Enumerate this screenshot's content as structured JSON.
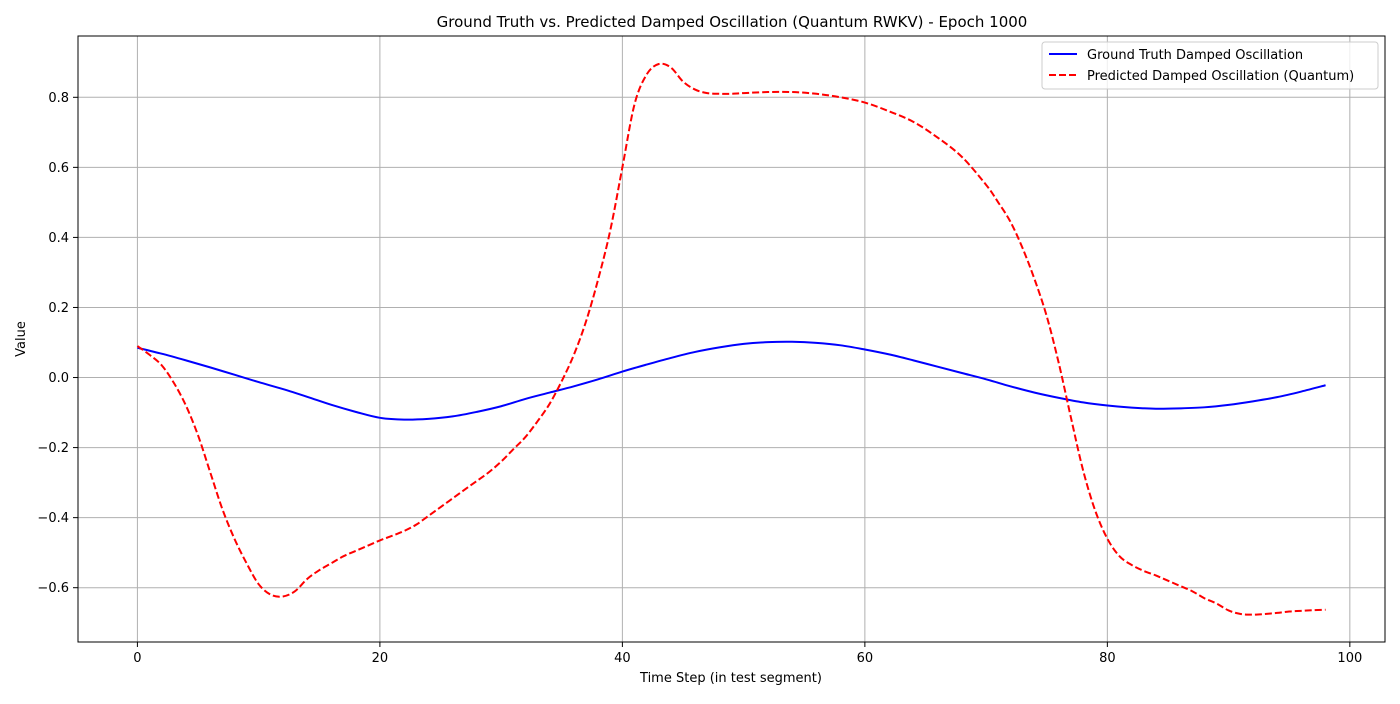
{
  "chart_data": {
    "type": "line",
    "title": "Ground Truth vs. Predicted Damped Oscillation (Quantum RWKV) - Epoch 1000",
    "xlabel": "Time Step (in test segment)",
    "ylabel": "Value",
    "xlim": [
      -4.9,
      102.9
    ],
    "ylim": [
      -0.755,
      0.975
    ],
    "x_ticks": [
      0,
      20,
      40,
      60,
      80,
      100
    ],
    "x_tick_labels": [
      "0",
      "20",
      "40",
      "60",
      "80",
      "100"
    ],
    "y_ticks": [
      -0.6,
      -0.4,
      -0.2,
      0.0,
      0.2,
      0.4,
      0.6,
      0.8
    ],
    "y_tick_labels": [
      "−0.6",
      "−0.4",
      "−0.2",
      "0.0",
      "0.2",
      "0.4",
      "0.6",
      "0.8"
    ],
    "grid": true,
    "legend_position": "top-right",
    "series": [
      {
        "name": "Ground Truth Damped Oscillation",
        "color": "#0000ff",
        "style": "solid",
        "x": [
          0,
          2,
          4,
          6,
          8,
          10,
          12,
          14,
          16,
          18,
          20,
          22,
          24,
          26,
          28,
          30,
          32,
          34,
          36,
          38,
          40,
          42,
          44,
          46,
          48,
          50,
          52,
          54,
          56,
          58,
          60,
          62,
          64,
          66,
          68,
          70,
          72,
          74,
          76,
          78,
          80,
          82,
          84,
          86,
          88,
          90,
          92,
          94,
          96,
          98
        ],
        "y": [
          0.085,
          0.068,
          0.049,
          0.029,
          0.008,
          -0.013,
          -0.033,
          -0.055,
          -0.078,
          -0.098,
          -0.115,
          -0.12,
          -0.118,
          -0.111,
          -0.098,
          -0.082,
          -0.061,
          -0.043,
          -0.025,
          -0.005,
          0.017,
          0.037,
          0.056,
          0.073,
          0.086,
          0.096,
          0.101,
          0.102,
          0.099,
          0.092,
          0.08,
          0.066,
          0.049,
          0.031,
          0.013,
          -0.005,
          -0.025,
          -0.043,
          -0.058,
          -0.071,
          -0.08,
          -0.086,
          -0.089,
          -0.088,
          -0.085,
          -0.078,
          -0.068,
          -0.056,
          -0.04,
          -0.022
        ]
      },
      {
        "name": "Predicted Damped Oscillation (Quantum)",
        "color": "#ff0000",
        "style": "dashed",
        "x": [
          0,
          1,
          2,
          3,
          4,
          5,
          6,
          7,
          8,
          9,
          10,
          11,
          12,
          13,
          14,
          15,
          16,
          17,
          18,
          19,
          20,
          21,
          22,
          23,
          24,
          25,
          26,
          27,
          28,
          29,
          30,
          31,
          32,
          33,
          34,
          35,
          36,
          37,
          38,
          39,
          40,
          41,
          42,
          43,
          44,
          45,
          46,
          47,
          48,
          49,
          50,
          52,
          54,
          56,
          58,
          60,
          62,
          64,
          66,
          68,
          70,
          71,
          72,
          73,
          74,
          75,
          76,
          77,
          78,
          79,
          80,
          81,
          82,
          83,
          84,
          85,
          86,
          87,
          88,
          89,
          90,
          91,
          92,
          93,
          94,
          95,
          96,
          97,
          98
        ],
        "y": [
          0.09,
          0.065,
          0.035,
          -0.015,
          -0.08,
          -0.165,
          -0.27,
          -0.375,
          -0.46,
          -0.53,
          -0.59,
          -0.62,
          -0.625,
          -0.61,
          -0.575,
          -0.55,
          -0.53,
          -0.51,
          -0.495,
          -0.48,
          -0.465,
          -0.452,
          -0.438,
          -0.42,
          -0.395,
          -0.37,
          -0.345,
          -0.32,
          -0.295,
          -0.27,
          -0.24,
          -0.205,
          -0.17,
          -0.125,
          -0.075,
          -0.01,
          0.065,
          0.16,
          0.28,
          0.42,
          0.6,
          0.78,
          0.865,
          0.895,
          0.885,
          0.845,
          0.822,
          0.812,
          0.81,
          0.81,
          0.812,
          0.815,
          0.815,
          0.81,
          0.8,
          0.785,
          0.76,
          0.73,
          0.685,
          0.63,
          0.55,
          0.5,
          0.445,
          0.37,
          0.28,
          0.175,
          0.04,
          -0.115,
          -0.265,
          -0.38,
          -0.46,
          -0.51,
          -0.535,
          -0.552,
          -0.565,
          -0.58,
          -0.595,
          -0.61,
          -0.63,
          -0.645,
          -0.665,
          -0.675,
          -0.677,
          -0.675,
          -0.672,
          -0.668,
          -0.666,
          -0.664,
          -0.663
        ]
      }
    ]
  }
}
